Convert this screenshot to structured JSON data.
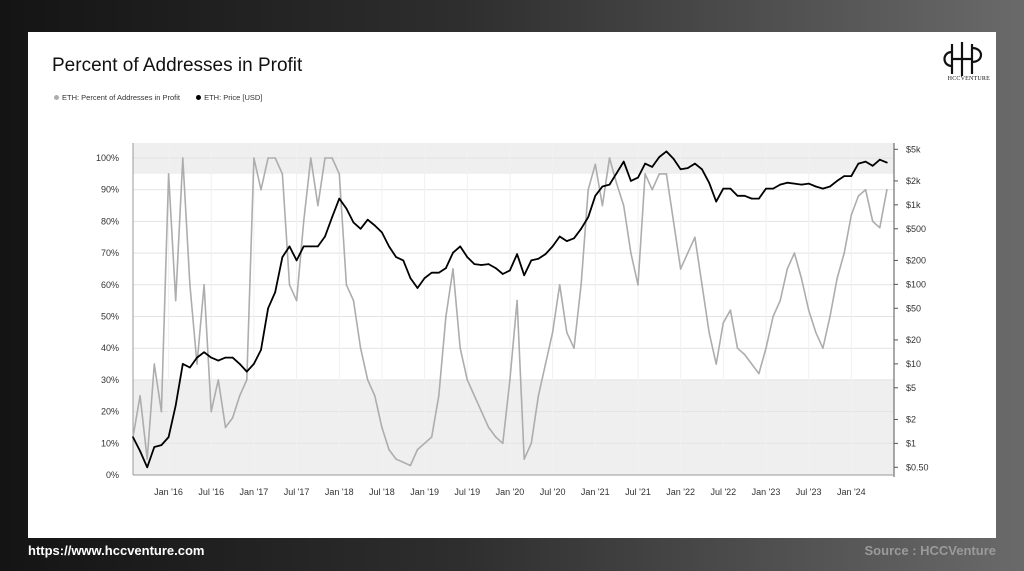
{
  "title": "Percent of Addresses in Profit",
  "logo": {
    "text": "HCCVENTURE",
    "icon": "hcc-monogram-icon"
  },
  "footer": {
    "url": "https://www.hccventure.com",
    "source": "Source : HCCVenture"
  },
  "colors": {
    "profit": "#adadad",
    "price": "#000000",
    "band": "#efefef",
    "grid": "#e3e3e3"
  },
  "chart_data": {
    "type": "line",
    "title": "Percent of Addresses in Profit",
    "legend_placement": "top-left",
    "grid": true,
    "x_ticks": [
      "Jan '16",
      "Jul '16",
      "Jan '17",
      "Jul '17",
      "Jan '18",
      "Jul '18",
      "Jan '19",
      "Jul '19",
      "Jan '20",
      "Jul '20",
      "Jan '21",
      "Jul '21",
      "Jan '22",
      "Jul '22",
      "Jan '23",
      "Jul '23",
      "Jan '24"
    ],
    "y_left": {
      "ticks": [
        "0%",
        "10%",
        "20%",
        "30%",
        "40%",
        "50%",
        "60%",
        "70%",
        "80%",
        "90%",
        "100%"
      ],
      "range": [
        0,
        100
      ]
    },
    "y_right": {
      "scale": "log",
      "ticks": [
        "$0.50",
        "$1",
        "$2",
        "$5",
        "$10",
        "$20",
        "$50",
        "$100",
        "$200",
        "$500",
        "$1k",
        "$2k",
        "$5k"
      ],
      "range": [
        0.4,
        6000
      ]
    },
    "bands": [
      {
        "axis": "left",
        "from": 95,
        "to": 105
      },
      {
        "axis": "left",
        "from": 0,
        "to": 30
      }
    ],
    "series": [
      {
        "name": "ETH: Percent of Addresses in Profit",
        "axis": "left",
        "x": [
          "2015-08",
          "2015-09",
          "2015-10",
          "2015-11",
          "2015-12",
          "2016-01",
          "2016-02",
          "2016-03",
          "2016-04",
          "2016-05",
          "2016-06",
          "2016-07",
          "2016-08",
          "2016-09",
          "2016-10",
          "2016-11",
          "2016-12",
          "2017-01",
          "2017-02",
          "2017-03",
          "2017-04",
          "2017-05",
          "2017-06",
          "2017-07",
          "2017-08",
          "2017-09",
          "2017-10",
          "2017-11",
          "2017-12",
          "2018-01",
          "2018-02",
          "2018-03",
          "2018-04",
          "2018-05",
          "2018-06",
          "2018-07",
          "2018-08",
          "2018-09",
          "2018-10",
          "2018-11",
          "2018-12",
          "2019-01",
          "2019-02",
          "2019-03",
          "2019-04",
          "2019-05",
          "2019-06",
          "2019-07",
          "2019-08",
          "2019-09",
          "2019-10",
          "2019-11",
          "2019-12",
          "2020-01",
          "2020-02",
          "2020-03",
          "2020-04",
          "2020-05",
          "2020-06",
          "2020-07",
          "2020-08",
          "2020-09",
          "2020-10",
          "2020-11",
          "2020-12",
          "2021-01",
          "2021-02",
          "2021-03",
          "2021-04",
          "2021-05",
          "2021-06",
          "2021-07",
          "2021-08",
          "2021-09",
          "2021-10",
          "2021-11",
          "2021-12",
          "2022-01",
          "2022-02",
          "2022-03",
          "2022-04",
          "2022-05",
          "2022-06",
          "2022-07",
          "2022-08",
          "2022-09",
          "2022-10",
          "2022-11",
          "2022-12",
          "2023-01",
          "2023-02",
          "2023-03",
          "2023-04",
          "2023-05",
          "2023-06",
          "2023-07",
          "2023-08",
          "2023-09",
          "2023-10",
          "2023-11",
          "2023-12",
          "2024-01",
          "2024-02",
          "2024-03",
          "2024-04",
          "2024-05",
          "2024-06"
        ],
        "values": [
          12,
          25,
          5,
          35,
          20,
          95,
          55,
          100,
          60,
          35,
          60,
          20,
          30,
          15,
          18,
          25,
          30,
          100,
          90,
          100,
          100,
          95,
          60,
          55,
          80,
          100,
          85,
          100,
          100,
          95,
          60,
          55,
          40,
          30,
          25,
          15,
          8,
          5,
          4,
          3,
          8,
          10,
          12,
          25,
          50,
          65,
          40,
          30,
          25,
          20,
          15,
          12,
          10,
          30,
          55,
          5,
          10,
          25,
          35,
          45,
          60,
          45,
          40,
          60,
          90,
          98,
          85,
          100,
          92,
          85,
          70,
          60,
          95,
          90,
          95,
          95,
          80,
          65,
          70,
          75,
          60,
          45,
          35,
          48,
          52,
          40,
          38,
          35,
          32,
          40,
          50,
          55,
          65,
          70,
          62,
          52,
          45,
          40,
          50,
          62,
          70,
          82,
          88,
          90,
          80,
          78,
          90
        ]
      },
      {
        "name": "ETH: Price [USD]",
        "axis": "right",
        "x": [
          "2015-08",
          "2015-09",
          "2015-10",
          "2015-11",
          "2015-12",
          "2016-01",
          "2016-02",
          "2016-03",
          "2016-04",
          "2016-05",
          "2016-06",
          "2016-07",
          "2016-08",
          "2016-09",
          "2016-10",
          "2016-11",
          "2016-12",
          "2017-01",
          "2017-02",
          "2017-03",
          "2017-04",
          "2017-05",
          "2017-06",
          "2017-07",
          "2017-08",
          "2017-09",
          "2017-10",
          "2017-11",
          "2017-12",
          "2018-01",
          "2018-02",
          "2018-03",
          "2018-04",
          "2018-05",
          "2018-06",
          "2018-07",
          "2018-08",
          "2018-09",
          "2018-10",
          "2018-11",
          "2018-12",
          "2019-01",
          "2019-02",
          "2019-03",
          "2019-04",
          "2019-05",
          "2019-06",
          "2019-07",
          "2019-08",
          "2019-09",
          "2019-10",
          "2019-11",
          "2019-12",
          "2020-01",
          "2020-02",
          "2020-03",
          "2020-04",
          "2020-05",
          "2020-06",
          "2020-07",
          "2020-08",
          "2020-09",
          "2020-10",
          "2020-11",
          "2020-12",
          "2021-01",
          "2021-02",
          "2021-03",
          "2021-04",
          "2021-05",
          "2021-06",
          "2021-07",
          "2021-08",
          "2021-09",
          "2021-10",
          "2021-11",
          "2021-12",
          "2022-01",
          "2022-02",
          "2022-03",
          "2022-04",
          "2022-05",
          "2022-06",
          "2022-07",
          "2022-08",
          "2022-09",
          "2022-10",
          "2022-11",
          "2022-12",
          "2023-01",
          "2023-02",
          "2023-03",
          "2023-04",
          "2023-05",
          "2023-06",
          "2023-07",
          "2023-08",
          "2023-09",
          "2023-10",
          "2023-11",
          "2023-12",
          "2024-01",
          "2024-02",
          "2024-03",
          "2024-04",
          "2024-05",
          "2024-06"
        ],
        "values": [
          1.2,
          0.8,
          0.5,
          0.9,
          0.95,
          1.2,
          3,
          10,
          9,
          12,
          14,
          12,
          11,
          12,
          12,
          10,
          8,
          10,
          15,
          50,
          80,
          220,
          300,
          200,
          300,
          300,
          300,
          400,
          700,
          1200,
          900,
          600,
          500,
          650,
          550,
          450,
          300,
          220,
          200,
          120,
          90,
          120,
          140,
          140,
          160,
          250,
          300,
          220,
          180,
          175,
          180,
          160,
          135,
          150,
          240,
          130,
          200,
          210,
          240,
          300,
          400,
          350,
          380,
          500,
          700,
          1300,
          1700,
          1800,
          2500,
          3500,
          2000,
          2200,
          3300,
          3000,
          4000,
          4700,
          3800,
          2800,
          2900,
          3300,
          2800,
          1900,
          1100,
          1600,
          1600,
          1300,
          1300,
          1200,
          1200,
          1600,
          1600,
          1800,
          1900,
          1850,
          1800,
          1850,
          1700,
          1600,
          1700,
          2000,
          2300,
          2300,
          3300,
          3500,
          3100,
          3700,
          3400
        ]
      }
    ]
  }
}
